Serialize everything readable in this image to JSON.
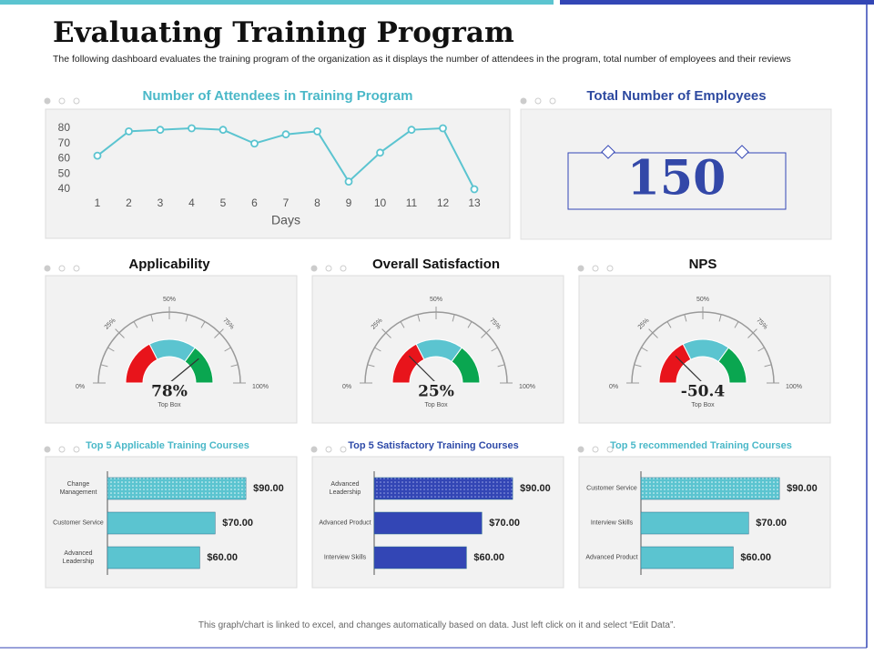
{
  "header": {
    "title": "Evaluating Training Program",
    "subtitle": "The following dashboard evaluates the training program of the organization as it displays the number of attendees in the program, total number of employees and their reviews"
  },
  "kpi": {
    "title": "Total Number of Employees",
    "value": 150
  },
  "footer": "This graph/chart is linked to excel, and changes automatically based on data. Just left click on it and select “Edit Data”.",
  "chart_data": [
    {
      "type": "line",
      "title": "Number of Attendees in Training Program",
      "title_color": "#4ab8c8",
      "x": [
        1,
        2,
        3,
        4,
        5,
        6,
        7,
        8,
        9,
        10,
        11,
        12,
        13
      ],
      "values": [
        62,
        78,
        79,
        80,
        79,
        70,
        76,
        78,
        45,
        64,
        79,
        80,
        40
      ],
      "color": "#5bc4d0",
      "xlabel": "Days",
      "xlim": [
        1,
        13
      ],
      "xticks": [
        1,
        2,
        3,
        4,
        5,
        6,
        7,
        8,
        9,
        10,
        11,
        12,
        13
      ],
      "ylim": [
        40,
        80
      ],
      "yticks": [
        40,
        50,
        60,
        70,
        80
      ]
    },
    {
      "type": "gauge",
      "title": "Applicability",
      "title_color": "#111111",
      "value": 78,
      "value_label": "78%",
      "caption": "Top Box",
      "ylim": [
        0,
        100
      ],
      "yticks": [
        {
          "value": 0,
          "label": "0%"
        },
        {
          "value": 25,
          "label": "25%"
        },
        {
          "value": 50,
          "label": "50%"
        },
        {
          "value": 75,
          "label": "75%"
        },
        {
          "value": 100,
          "label": "100%"
        }
      ]
    },
    {
      "type": "gauge",
      "title": "Overall  Satisfaction",
      "title_color": "#111111",
      "value": 25,
      "value_label": "25%",
      "caption": "Top Box",
      "ylim": [
        0,
        100
      ],
      "yticks": [
        {
          "value": 0,
          "label": "0%"
        },
        {
          "value": 25,
          "label": "25%"
        },
        {
          "value": 50,
          "label": "50%"
        },
        {
          "value": 75,
          "label": "75%"
        },
        {
          "value": 100,
          "label": "100%"
        }
      ]
    },
    {
      "type": "gauge",
      "title": "NPS",
      "title_color": "#111111",
      "value": -50.4,
      "caption": "Top Box",
      "ylim": [
        -100,
        100
      ],
      "yticks": [
        {
          "value": -100,
          "label": "0%"
        },
        {
          "value": -50,
          "label": "25%"
        },
        {
          "value": 0,
          "label": "50%"
        },
        {
          "value": 50,
          "label": "75%"
        },
        {
          "value": 100,
          "label": "100%"
        }
      ]
    },
    {
      "type": "bar",
      "title": "Top 5 Applicable Training Courses",
      "title_color": "#4ab8c8",
      "categories": [
        "Change Management",
        "Customer Service",
        "Advanced Leadership"
      ],
      "values": [
        90,
        70,
        60
      ],
      "value_labels": [
        "$90.00",
        "$70.00",
        "$60.00"
      ],
      "color": "#5bc4d0",
      "xlim": [
        0,
        100
      ]
    },
    {
      "type": "bar",
      "title": "Top 5 Satisfactory Training Courses",
      "title_color": "#2e4aa8",
      "categories": [
        "Advanced Leadership",
        "Advanced Product",
        "Interview Skills"
      ],
      "values": [
        90,
        70,
        60
      ],
      "value_labels": [
        "$90.00",
        "$70.00",
        "$60.00"
      ],
      "color": "#3346b5",
      "xlim": [
        0,
        100
      ]
    },
    {
      "type": "bar",
      "title": "Top 5 recommended Training Courses",
      "title_color": "#4ab8c8",
      "categories": [
        "Customer Service",
        "Interview Skills",
        "Advanced Product"
      ],
      "values": [
        90,
        70,
        60
      ],
      "value_labels": [
        "$90.00",
        "$70.00",
        "$60.00"
      ],
      "color": "#5bc4d0",
      "xlim": [
        0,
        100
      ]
    }
  ]
}
